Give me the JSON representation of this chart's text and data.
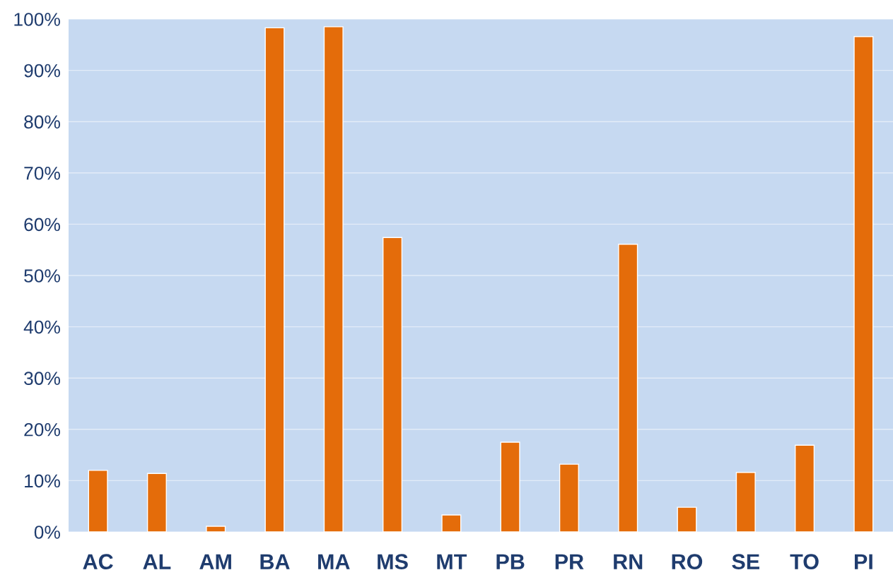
{
  "chart_data": {
    "type": "bar",
    "categories": [
      "AC",
      "AL",
      "AM",
      "BA",
      "MA",
      "MS",
      "MT",
      "PB",
      "PR",
      "RN",
      "RO",
      "SE",
      "TO",
      "PI"
    ],
    "values": [
      12.0,
      11.4,
      1.1,
      98.3,
      98.5,
      57.4,
      3.3,
      17.5,
      13.2,
      56.1,
      4.8,
      11.6,
      16.9,
      96.6
    ],
    "color": "#e46c0a",
    "ylim": [
      0,
      100
    ],
    "yticks": [
      {
        "value": 0,
        "label": "0%"
      },
      {
        "value": 10,
        "label": "10%"
      },
      {
        "value": 20,
        "label": "20%"
      },
      {
        "value": 30,
        "label": "30%"
      },
      {
        "value": 40,
        "label": "40%"
      },
      {
        "value": 50,
        "label": "50%"
      },
      {
        "value": 60,
        "label": "60%"
      },
      {
        "value": 70,
        "label": "70%"
      },
      {
        "value": 80,
        "label": "80%"
      },
      {
        "value": 90,
        "label": "90%"
      },
      {
        "value": 100,
        "label": "100%"
      }
    ],
    "grid": "y"
  }
}
